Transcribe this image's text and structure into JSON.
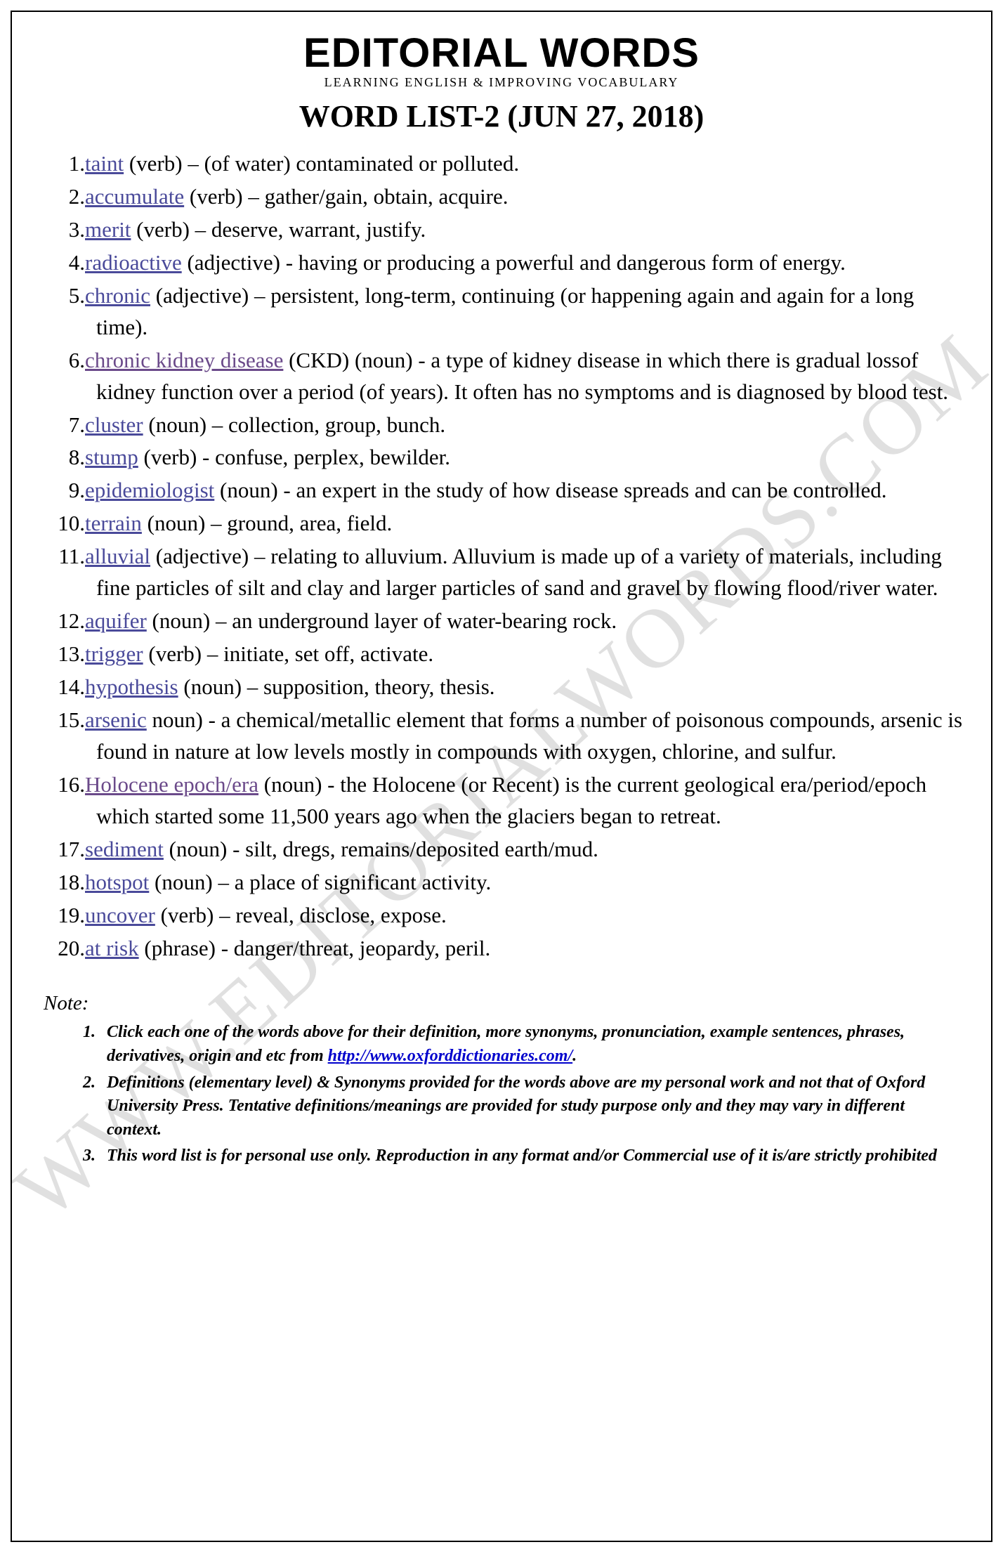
{
  "brand": {
    "title": "EDITORIAL WORDS",
    "subtitle": "LEARNING ENGLISH & IMPROVING VOCABULARY"
  },
  "list_title": "WORD LIST-2 (JUN 27, 2018)",
  "watermark": "WWW.EDITORIALWORDS.COM",
  "words": [
    {
      "n": "1.",
      "w": "taint",
      "p": "(verb)",
      "d": "– (of water) contaminated or polluted."
    },
    {
      "n": "2.",
      "w": "accumulate",
      "p": "(verb)",
      "d": "– gather/gain, obtain, acquire."
    },
    {
      "n": "3.",
      "w": "merit",
      "p": "(verb)",
      "d": "– deserve, warrant, justify."
    },
    {
      "n": "4.",
      "w": "radioactive",
      "p": "(adjective)",
      "d": "- having or producing a powerful and dangerous form of energy."
    },
    {
      "n": "5.",
      "w": "chronic",
      "p": "(adjective)",
      "d": "– persistent, long-term, continuing (or happening again and again for a long time)."
    },
    {
      "n": "6.",
      "w": "chronic kidney disease",
      "p": "(CKD) (noun)",
      "d": "- a type of kidney disease in which there is gradual lossof kidney function over a period (of years). It often has no symptoms and is diagnosed by blood test."
    },
    {
      "n": "7.",
      "w": "cluster",
      "p": "(noun)",
      "d": "– collection, group, bunch."
    },
    {
      "n": "8.",
      "w": "stump",
      "p": "(verb)",
      "d": "- confuse, perplex,  bewilder."
    },
    {
      "n": "9.",
      "w": "epidemiologist",
      "p": "(noun)",
      "d": "- an expert in the study of how disease spreads and can be controlled."
    },
    {
      "n": "10.",
      "w": "terrain",
      "p": "(noun)",
      "d": "– ground, area, field."
    },
    {
      "n": "11.",
      "w": "alluvial",
      "p": "(adjective)",
      "d": "– relating to alluvium. Alluvium is made up of a variety of materials, including fine particles of silt and clay and larger particles of sand and gravel by flowing flood/river water."
    },
    {
      "n": "12.",
      "w": "aquifer",
      "p": "(noun)",
      "d": "– an underground layer of water-bearing rock."
    },
    {
      "n": "13.",
      "w": "trigger",
      "p": "(verb)",
      "d": "– initiate, set off, activate."
    },
    {
      "n": "14.",
      "w": "hypothesis",
      "p": "(noun)",
      "d": "– supposition, theory, thesis."
    },
    {
      "n": "15.",
      "w": "arsenic",
      "p": "noun)",
      "d": "- a chemical/metallic element that forms a number of poisonous compounds, arsenic is found in nature at low levels mostly in compounds with oxygen, chlorine, and sulfur."
    },
    {
      "n": "16.",
      "w": "Holocene epoch/era",
      "p": "(noun)",
      "d": "- the Holocene (or Recent) is the current geological era/period/epoch which started some 11,500 years ago when the glaciers began to retreat."
    },
    {
      "n": "17.",
      "w": "sediment",
      "p": "(noun)",
      "d": "- silt, dregs, remains/deposited earth/mud."
    },
    {
      "n": "18.",
      "w": "hotspot",
      "p": "(noun)",
      "d": "– a place of significant activity."
    },
    {
      "n": "19.",
      "w": "uncover",
      "p": "(verb)",
      "d": "– reveal, disclose, expose."
    },
    {
      "n": "20.",
      "w": "at  risk",
      "p": "(phrase)",
      "d": "- danger/threat, jeopardy, peril."
    }
  ],
  "note_label": "Note:",
  "notes": {
    "n1a": "Click each one of the words above for their definition, more synonyms, pronunciation, example sentences, phrases, derivatives, origin and etc from ",
    "n1link": "http://www.oxforddictionaries.com/",
    "n1b": ".",
    "n2": "Definitions (elementary level) & Synonyms provided for the words above are my personal work and not that of Oxford University Press. Tentative definitions/meanings are provided for study purpose only and they may vary in different context.",
    "n3": "This word list is for personal use only. Reproduction in any format and/or Commercial use of it is/are strictly prohibited"
  },
  "colors": {
    "link": "#4a4a9a",
    "visited_link": "#6b4a8a",
    "note_link": "#0000cc",
    "text": "#000000",
    "watermark": "rgba(0,0,0,0.12)"
  }
}
